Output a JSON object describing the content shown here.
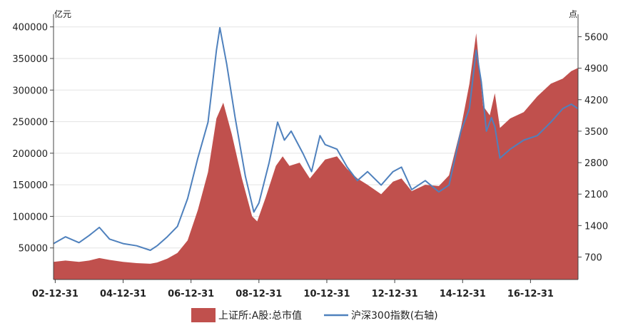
{
  "chart_data": {
    "type": "area",
    "left_unit": "亿元",
    "right_unit": "点",
    "x_ticks": [
      "02-12-31",
      "04-12-31",
      "06-12-31",
      "08-12-31",
      "10-12-31",
      "12-12-31",
      "14-12-31",
      "16-12-31"
    ],
    "y_left_ticks": [
      50000,
      100000,
      150000,
      200000,
      250000,
      300000,
      350000,
      400000
    ],
    "y_left_lim": [
      0,
      420000
    ],
    "y_right_ticks": [
      700,
      1400,
      2100,
      2800,
      3500,
      4200,
      4900,
      5600
    ],
    "y_right_lim": [
      200,
      6100
    ],
    "x_year_range": [
      2002.95,
      2018.4
    ],
    "grid": "horizontal",
    "legend_position": "bottom",
    "series": [
      {
        "name": "上证所:A股:总市值",
        "kind": "area",
        "axis": "left",
        "color": "#c0504d",
        "points": [
          [
            2002.95,
            28000
          ],
          [
            2003.3,
            30000
          ],
          [
            2003.7,
            28000
          ],
          [
            2004.0,
            30000
          ],
          [
            2004.3,
            34000
          ],
          [
            2004.6,
            31000
          ],
          [
            2005.0,
            28000
          ],
          [
            2005.4,
            26000
          ],
          [
            2005.8,
            25000
          ],
          [
            2006.0,
            27000
          ],
          [
            2006.3,
            33000
          ],
          [
            2006.6,
            42000
          ],
          [
            2006.9,
            62000
          ],
          [
            2007.2,
            110000
          ],
          [
            2007.5,
            170000
          ],
          [
            2007.75,
            255000
          ],
          [
            2007.95,
            280000
          ],
          [
            2008.2,
            230000
          ],
          [
            2008.5,
            160000
          ],
          [
            2008.8,
            100000
          ],
          [
            2008.95,
            92000
          ],
          [
            2009.2,
            130000
          ],
          [
            2009.5,
            180000
          ],
          [
            2009.7,
            195000
          ],
          [
            2009.9,
            180000
          ],
          [
            2010.2,
            185000
          ],
          [
            2010.5,
            160000
          ],
          [
            2010.8,
            180000
          ],
          [
            2010.95,
            190000
          ],
          [
            2011.3,
            195000
          ],
          [
            2011.6,
            175000
          ],
          [
            2011.9,
            160000
          ],
          [
            2012.2,
            150000
          ],
          [
            2012.6,
            135000
          ],
          [
            2012.95,
            155000
          ],
          [
            2013.2,
            160000
          ],
          [
            2013.5,
            140000
          ],
          [
            2013.9,
            150000
          ],
          [
            2014.3,
            148000
          ],
          [
            2014.6,
            165000
          ],
          [
            2014.95,
            240000
          ],
          [
            2015.2,
            310000
          ],
          [
            2015.4,
            390000
          ],
          [
            2015.6,
            275000
          ],
          [
            2015.8,
            260000
          ],
          [
            2015.95,
            295000
          ],
          [
            2016.1,
            240000
          ],
          [
            2016.4,
            255000
          ],
          [
            2016.8,
            265000
          ],
          [
            2017.2,
            290000
          ],
          [
            2017.6,
            310000
          ],
          [
            2017.95,
            318000
          ],
          [
            2018.2,
            330000
          ],
          [
            2018.4,
            335000
          ]
        ]
      },
      {
        "name": "沪深300指数(右轴)",
        "kind": "line",
        "axis": "right",
        "color": "#4f81bd",
        "points": [
          [
            2002.95,
            1000
          ],
          [
            2003.3,
            1150
          ],
          [
            2003.7,
            1020
          ],
          [
            2004.0,
            1180
          ],
          [
            2004.3,
            1360
          ],
          [
            2004.6,
            1100
          ],
          [
            2005.0,
            1000
          ],
          [
            2005.4,
            950
          ],
          [
            2005.8,
            850
          ],
          [
            2006.0,
            950
          ],
          [
            2006.3,
            1150
          ],
          [
            2006.6,
            1380
          ],
          [
            2006.9,
            2000
          ],
          [
            2007.2,
            2900
          ],
          [
            2007.5,
            3700
          ],
          [
            2007.75,
            5300
          ],
          [
            2007.85,
            5800
          ],
          [
            2008.05,
            5000
          ],
          [
            2008.3,
            3800
          ],
          [
            2008.6,
            2500
          ],
          [
            2008.85,
            1700
          ],
          [
            2009.0,
            1900
          ],
          [
            2009.3,
            2800
          ],
          [
            2009.55,
            3700
          ],
          [
            2009.75,
            3300
          ],
          [
            2009.95,
            3500
          ],
          [
            2010.3,
            3000
          ],
          [
            2010.55,
            2600
          ],
          [
            2010.8,
            3400
          ],
          [
            2010.95,
            3200
          ],
          [
            2011.3,
            3100
          ],
          [
            2011.6,
            2700
          ],
          [
            2011.9,
            2400
          ],
          [
            2012.2,
            2600
          ],
          [
            2012.6,
            2300
          ],
          [
            2012.95,
            2600
          ],
          [
            2013.2,
            2700
          ],
          [
            2013.5,
            2200
          ],
          [
            2013.9,
            2400
          ],
          [
            2014.3,
            2150
          ],
          [
            2014.6,
            2300
          ],
          [
            2014.95,
            3500
          ],
          [
            2015.2,
            4000
          ],
          [
            2015.4,
            5300
          ],
          [
            2015.55,
            4600
          ],
          [
            2015.7,
            3500
          ],
          [
            2015.85,
            3800
          ],
          [
            2015.95,
            3600
          ],
          [
            2016.1,
            2900
          ],
          [
            2016.4,
            3100
          ],
          [
            2016.8,
            3300
          ],
          [
            2017.2,
            3400
          ],
          [
            2017.6,
            3700
          ],
          [
            2017.95,
            4000
          ],
          [
            2018.2,
            4100
          ],
          [
            2018.4,
            4000
          ]
        ]
      }
    ]
  }
}
